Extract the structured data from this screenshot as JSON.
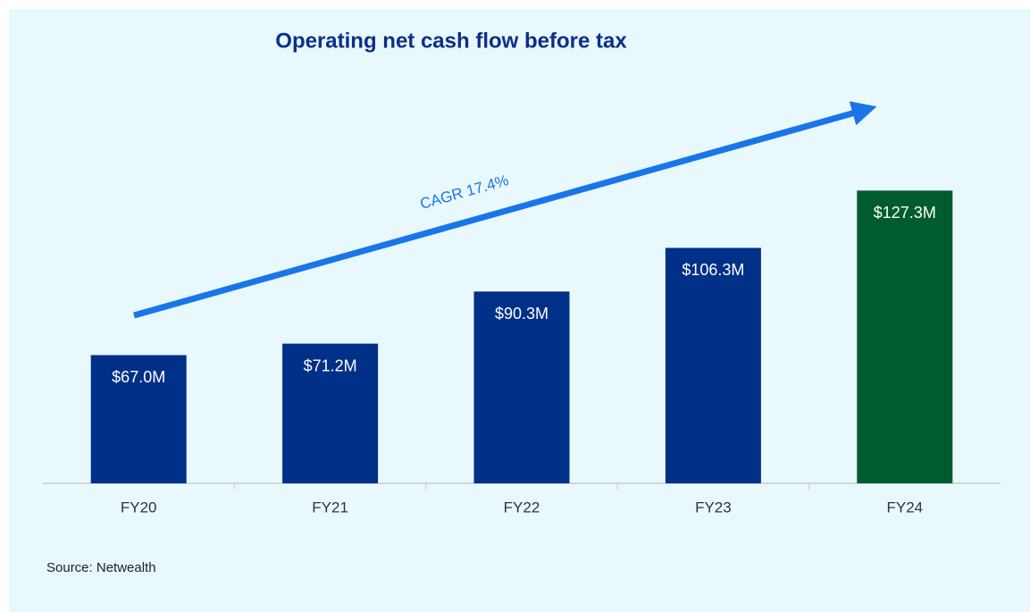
{
  "chart_data": {
    "type": "bar",
    "title": "Operating net cash flow before tax",
    "categories": [
      "FY20",
      "FY21",
      "FY22",
      "FY23",
      "FY24"
    ],
    "values": [
      67.0,
      71.2,
      90.3,
      106.3,
      127.3
    ],
    "value_labels": [
      "$67.0M",
      "$71.2M",
      "$90.3M",
      "$106.3M",
      "$127.3M"
    ],
    "colors": [
      "#003087",
      "#003087",
      "#003087",
      "#003087",
      "#005c2e"
    ],
    "ylim": [
      20,
      150
    ],
    "annotation": "CAGR 17.4%",
    "source": "Source: Netwealth"
  }
}
